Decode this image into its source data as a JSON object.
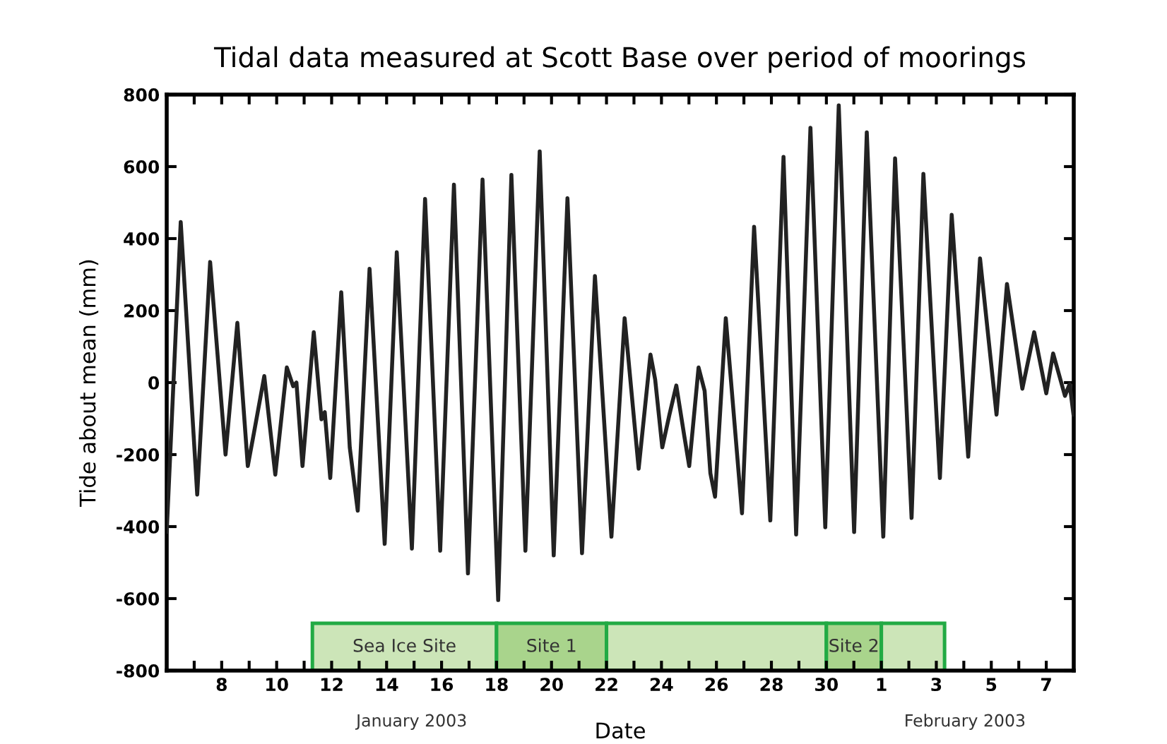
{
  "chart_data": {
    "type": "line",
    "title": "Tidal data measured at Scott Base over period of moorings",
    "xlabel": "Date",
    "ylabel": "Tide about mean (mm)",
    "annotations": [
      "January 2003",
      "February 2003"
    ],
    "x": [
      "2003-01-06T00:00",
      "2003-01-06T12:14",
      "2003-01-07T02:38",
      "2003-01-07T13:55",
      "2003-01-08T03:22",
      "2003-01-08T13:41",
      "2003-01-08T22:48",
      "2003-01-09T04:05",
      "2003-01-09T13:12",
      "2003-01-09T22:48",
      "2003-01-10T08:53",
      "2003-01-10T14:24",
      "2003-01-10T17:17",
      "2003-01-10T22:34",
      "2003-01-11T08:24",
      "2003-01-11T15:07",
      "2003-01-11T18:00",
      "2003-01-11T22:48",
      "2003-01-12T08:24",
      "2003-01-12T15:50",
      "2003-01-12T22:48",
      "2003-01-13T09:07",
      "2003-01-13T22:19",
      "2003-01-14T08:53",
      "2003-01-14T22:05",
      "2003-01-15T09:36",
      "2003-01-15T22:48",
      "2003-01-16T10:48",
      "2003-01-16T23:02",
      "2003-01-17T11:46",
      "2003-01-18T01:26",
      "2003-01-18T12:58",
      "2003-01-19T01:12",
      "2003-01-19T13:41",
      "2003-01-20T01:55",
      "2003-01-20T13:55",
      "2003-01-21T02:38",
      "2003-01-21T13:55",
      "2003-01-22T04:19",
      "2003-01-22T15:50",
      "2003-01-23T04:05",
      "2003-01-23T14:24",
      "2003-01-23T18:29",
      "2003-01-24T00:43",
      "2003-01-24T06:58",
      "2003-01-24T12:58",
      "2003-01-24T19:55",
      "2003-01-25T00:14",
      "2003-01-25T08:24",
      "2003-01-25T13:41",
      "2003-01-25T18:43",
      "2003-01-25T22:48",
      "2003-01-26T08:10",
      "2003-01-26T22:19",
      "2003-01-27T08:53",
      "2003-01-27T23:02",
      "2003-01-28T10:34",
      "2003-01-28T21:36",
      "2003-01-29T10:05",
      "2003-01-29T23:02",
      "2003-01-30T10:48",
      "2003-01-31T00:14",
      "2003-01-31T11:17",
      "2003-02-01T01:41",
      "2003-02-01T12:00",
      "2003-02-02T02:24",
      "2003-02-02T12:43",
      "2003-02-03T03:07",
      "2003-02-03T13:26",
      "2003-02-04T03:50",
      "2003-02-04T14:10",
      "2003-02-05T04:34",
      "2003-02-05T13:41",
      "2003-02-06T03:07",
      "2003-02-06T13:26",
      "2003-02-07T00:00",
      "2003-02-07T06:00",
      "2003-02-07T16:19",
      "2003-02-07T20:24",
      "2003-02-07T23:46"
    ],
    "series": [
      {
        "color": "#222222",
        "values": [
          -415,
          446,
          -311,
          335,
          -200,
          166,
          -232,
          -141,
          18,
          -256,
          42,
          -10,
          0,
          -232,
          140,
          -102,
          -82,
          -265,
          251,
          -180,
          -356,
          316,
          -448,
          362,
          -461,
          510,
          -467,
          550,
          -530,
          564,
          -604,
          577,
          -467,
          642,
          -480,
          512,
          -474,
          296,
          -428,
          179,
          -239,
          78,
          9,
          -180,
          -89,
          -8,
          -148,
          -232,
          42,
          -23,
          -252,
          -317,
          179,
          -363,
          433,
          -383,
          627,
          -422,
          708,
          -402,
          770,
          -415,
          695,
          -428,
          623,
          -376,
          580,
          -265,
          466,
          -206,
          345,
          -89,
          274,
          -17,
          140,
          -30,
          81,
          -37,
          -4,
          -89
        ]
      }
    ],
    "xlim": [
      "2003-01-06",
      "2003-02-08"
    ],
    "ylim": [
      -800,
      800
    ],
    "xticks": [
      {
        "value": "2003-01-07",
        "label": null
      },
      {
        "value": "2003-01-08",
        "label": "8"
      },
      {
        "value": "2003-01-09",
        "label": null
      },
      {
        "value": "2003-01-10",
        "label": "10"
      },
      {
        "value": "2003-01-11",
        "label": null
      },
      {
        "value": "2003-01-12",
        "label": "12"
      },
      {
        "value": "2003-01-13",
        "label": null
      },
      {
        "value": "2003-01-14",
        "label": "14"
      },
      {
        "value": "2003-01-15",
        "label": null
      },
      {
        "value": "2003-01-16",
        "label": "16"
      },
      {
        "value": "2003-01-17",
        "label": null
      },
      {
        "value": "2003-01-18",
        "label": "18"
      },
      {
        "value": "2003-01-19",
        "label": null
      },
      {
        "value": "2003-01-20",
        "label": "20"
      },
      {
        "value": "2003-01-21",
        "label": null
      },
      {
        "value": "2003-01-22",
        "label": "22"
      },
      {
        "value": "2003-01-23",
        "label": null
      },
      {
        "value": "2003-01-24",
        "label": "24"
      },
      {
        "value": "2003-01-25",
        "label": null
      },
      {
        "value": "2003-01-26",
        "label": "26"
      },
      {
        "value": "2003-01-27",
        "label": null
      },
      {
        "value": "2003-01-28",
        "label": "28"
      },
      {
        "value": "2003-01-29",
        "label": null
      },
      {
        "value": "2003-01-30",
        "label": "30"
      },
      {
        "value": "2003-01-31",
        "label": null
      },
      {
        "value": "2003-02-01",
        "label": "1"
      },
      {
        "value": "2003-02-02",
        "label": null
      },
      {
        "value": "2003-02-03",
        "label": "3"
      },
      {
        "value": "2003-02-04",
        "label": null
      },
      {
        "value": "2003-02-05",
        "label": "5"
      },
      {
        "value": "2003-02-06",
        "label": null
      },
      {
        "value": "2003-02-07",
        "label": "7"
      }
    ],
    "yticks": [
      -800,
      -600,
      -400,
      -200,
      0,
      200,
      400,
      600,
      800
    ],
    "bands": [
      {
        "axis": "x",
        "from": "2003-01-11T07:12",
        "to": "2003-01-18",
        "label": "Sea Ice Site",
        "color": "#cce5b8"
      },
      {
        "axis": "x",
        "from": "2003-01-18",
        "to": "2003-01-22",
        "label": "Site 1",
        "color": "#a9d48c"
      },
      {
        "axis": "x",
        "from": "2003-01-22",
        "to": "2003-01-30",
        "color": "#cce5b8"
      },
      {
        "axis": "x",
        "from": "2003-01-30",
        "to": "2003-02-01",
        "label": "Site 2",
        "color": "#a9d48c"
      },
      {
        "axis": "x",
        "from": "2003-02-01",
        "to": "2003-02-03T07:12",
        "color": "#cce5b8"
      }
    ],
    "grid": false,
    "legend": false,
    "marker": "none",
    "line_style": "solid"
  }
}
